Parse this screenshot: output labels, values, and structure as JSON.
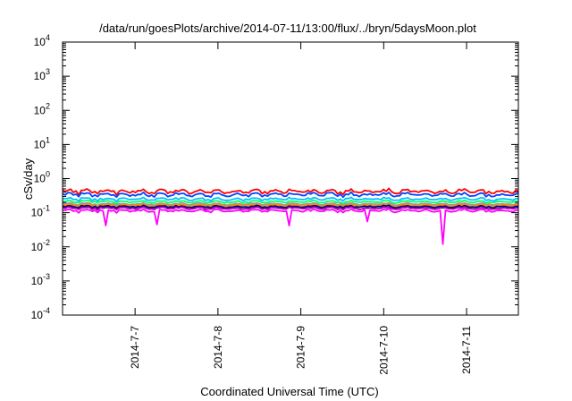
{
  "chart_data": {
    "type": "line",
    "title": "/data/run/goesPlots/archive/2014-07-11/13:00/flux/../bryn/5daysMoon.plot",
    "xlabel": "Coordinated Universal Time (UTC)",
    "ylabel": "cSv/day",
    "yscale": "log",
    "ylim": [
      0.0001,
      10000
    ],
    "y_tick_exponents": [
      -4,
      -3,
      -2,
      -1,
      0,
      1,
      2,
      3,
      4
    ],
    "xlim": [
      "2014-07-06 03:00",
      "2014-07-11 15:00"
    ],
    "x_ticks": [
      "2014-7-7",
      "2014-7-8",
      "2014-7-9",
      "2014-7-10",
      "2014-7-11"
    ],
    "grid": false,
    "legend": "none",
    "series": [
      {
        "color": "#ff0000",
        "base": 0.42,
        "amp": 0.18,
        "dips": []
      },
      {
        "color": "#0044ff",
        "base": 0.34,
        "amp": 0.16,
        "dips": []
      },
      {
        "color": "#00bfff",
        "base": 0.25,
        "amp": 0.12,
        "dips": []
      },
      {
        "color": "#00ff66",
        "base": 0.21,
        "amp": 0.1,
        "dips": []
      },
      {
        "color": "#999999",
        "base": 0.18,
        "amp": 0.09,
        "dips": []
      },
      {
        "color": "#ff8800",
        "base": 0.165,
        "amp": 0.09,
        "dips": []
      },
      {
        "color": "#000088",
        "base": 0.15,
        "amp": 0.09,
        "dips": []
      },
      {
        "color": "#aa00aa",
        "base": 0.135,
        "amp": 0.1,
        "dips": []
      },
      {
        "color": "#ff00ff",
        "base": 0.115,
        "amp": 0.12,
        "dips": [
          {
            "t": "2014-07-06 15:36",
            "y": 0.042
          },
          {
            "t": "2014-07-07 06:00",
            "y": 0.045
          },
          {
            "t": "2014-07-08 20:24",
            "y": 0.042
          },
          {
            "t": "2014-07-09 19:12",
            "y": 0.055
          },
          {
            "t": "2014-07-10 16:48",
            "y": 0.012
          }
        ]
      }
    ]
  }
}
